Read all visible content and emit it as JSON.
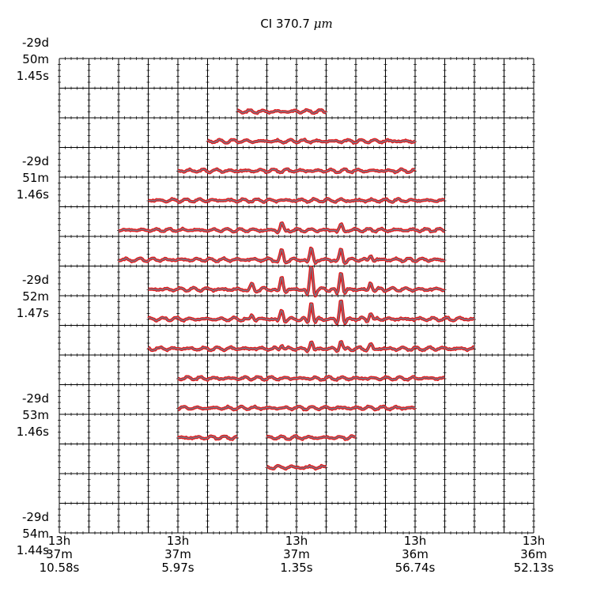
{
  "title": "CI 370.7",
  "title_unit": "μm",
  "chart_data": {
    "type": "line",
    "title": "CI 370.7 μm",
    "xlabel": "",
    "ylabel": "",
    "grid": true,
    "legend": "none",
    "line_colors": {
      "outer": "#e31a1c",
      "inner": "#6f7f8f"
    },
    "x_ticks": [
      {
        "label": "13h\n37m\n10.58s"
      },
      {
        "label": "13h\n37m\n5.97s"
      },
      {
        "label": "13h\n37m\n1.35s"
      },
      {
        "label": "13h\n36m\n56.74s"
      },
      {
        "label": "13h\n36m\n52.13s"
      }
    ],
    "y_ticks": [
      {
        "label": "-29d\n50m\n1.45s"
      },
      {
        "label": "-29d\n51m\n1.46s"
      },
      {
        "label": "-29d\n52m\n1.47s"
      },
      {
        "label": "-29d\n53m\n1.46s"
      },
      {
        "label": "-29d\n54m\n1.44s"
      }
    ],
    "grid_columns": 16,
    "grid_rows": 16,
    "spectra_rows": [
      {
        "row": 1,
        "segments": [
          [
            6,
            9
          ]
        ],
        "peaks": []
      },
      {
        "row": 2,
        "segments": [
          [
            5,
            12
          ]
        ],
        "peaks": []
      },
      {
        "row": 3,
        "segments": [
          [
            4,
            12
          ]
        ],
        "peaks": []
      },
      {
        "row": 4,
        "segments": [
          [
            3,
            13
          ]
        ],
        "peaks": []
      },
      {
        "row": 5,
        "segments": [
          [
            2,
            13
          ]
        ],
        "peaks": [
          [
            7.5,
            0.3
          ],
          [
            9.5,
            0.25
          ]
        ]
      },
      {
        "row": 6,
        "segments": [
          [
            2,
            13
          ]
        ],
        "peaks": [
          [
            7.5,
            0.4
          ],
          [
            8.5,
            0.5
          ],
          [
            9.5,
            0.45
          ],
          [
            10.5,
            0.2
          ]
        ]
      },
      {
        "row": 7,
        "segments": [
          [
            3,
            13
          ]
        ],
        "peaks": [
          [
            6.5,
            0.2
          ],
          [
            7.5,
            0.55
          ],
          [
            8.5,
            1.0
          ],
          [
            9.5,
            0.8
          ],
          [
            10.5,
            0.3
          ]
        ]
      },
      {
        "row": 8,
        "segments": [
          [
            3,
            14
          ]
        ],
        "peaks": [
          [
            6.5,
            0.2
          ],
          [
            7.5,
            0.4
          ],
          [
            8.5,
            0.75
          ],
          [
            9.5,
            0.85
          ],
          [
            10.5,
            0.3
          ]
        ]
      },
      {
        "row": 9,
        "segments": [
          [
            3,
            14
          ]
        ],
        "peaks": [
          [
            7.5,
            0.2
          ],
          [
            8.5,
            0.3
          ],
          [
            9.5,
            0.35
          ],
          [
            10.5,
            0.2
          ]
        ]
      },
      {
        "row": 10,
        "segments": [
          [
            4,
            13
          ]
        ],
        "peaks": []
      },
      {
        "row": 11,
        "segments": [
          [
            4,
            12
          ]
        ],
        "peaks": []
      },
      {
        "row": 12,
        "segments": [
          [
            4,
            6
          ],
          [
            7,
            10
          ]
        ],
        "peaks": []
      },
      {
        "row": 13,
        "segments": [
          [
            7,
            9
          ]
        ],
        "peaks": []
      }
    ]
  }
}
